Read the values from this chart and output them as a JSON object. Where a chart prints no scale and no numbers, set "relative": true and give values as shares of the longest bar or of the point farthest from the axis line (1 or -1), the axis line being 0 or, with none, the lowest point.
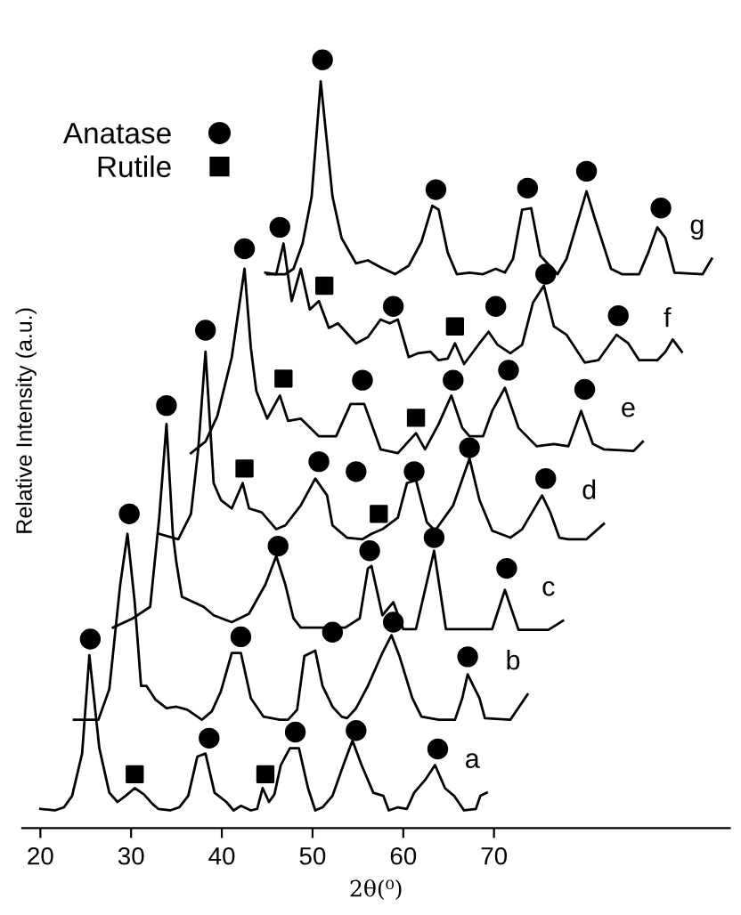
{
  "chart_data": {
    "type": "line",
    "relative": true,
    "xlabel": "2θ(⁰)",
    "ylabel": "Relative Intensity (a.u.)",
    "xlim": [
      18,
      96
    ],
    "xticks": [
      20,
      30,
      40,
      50,
      60,
      70
    ],
    "legend": "top left",
    "grid": false,
    "series": [
      {
        "name": "a",
        "color": "#000000",
        "x": [
          20,
          21.6,
          22.6,
          23.5,
          24.6,
          25.4,
          26.5,
          27.6,
          28.5,
          29.4,
          30.4,
          31.4,
          32.4,
          33.0,
          34.3,
          35.3,
          36.3,
          37.3,
          38.2,
          39.2,
          40.5,
          41.3,
          42.1,
          43.2,
          43.9,
          44.5,
          45.2,
          45.8,
          46.5,
          47.5,
          48.5,
          49.5,
          50.3,
          51.1,
          52.2,
          53.4,
          54.4,
          55.4,
          56.7,
          57.8,
          58.4,
          59.4,
          60.4,
          61.2,
          62.5,
          63.5,
          64.6,
          65.6,
          66.7,
          68.0,
          68.5,
          69.2
        ],
        "values": [
          0.025,
          0.023,
          0.027,
          0.042,
          0.097,
          0.225,
          0.104,
          0.046,
          0.034,
          0.042,
          0.052,
          0.044,
          0.031,
          0.025,
          0.023,
          0.027,
          0.042,
          0.093,
          0.097,
          0.046,
          0.034,
          0.023,
          0.029,
          0.023,
          0.025,
          0.052,
          0.034,
          0.044,
          0.082,
          0.104,
          0.104,
          0.052,
          0.023,
          0.027,
          0.042,
          0.082,
          0.114,
          0.082,
          0.046,
          0.042,
          0.023,
          0.027,
          0.025,
          0.046,
          0.064,
          0.082,
          0.052,
          0.042,
          0.023,
          0.025,
          0.042,
          0.046
        ]
      },
      {
        "name": "b",
        "color": "#000000",
        "x": [
          23.7,
          26.4,
          27.6,
          28.8,
          29.6,
          30.4,
          31.1,
          31.7,
          32.7,
          33.9,
          35.0,
          36.2,
          37.8,
          38.9,
          39.9,
          41.1,
          42.1,
          43.2,
          44.6,
          46.4,
          47.3,
          48.3,
          49.1,
          50.3,
          51.1,
          52.2,
          53.2,
          53.8,
          54.8,
          56.1,
          57.7,
          58.7,
          59.6,
          61.0,
          62.0,
          63.9,
          65.7,
          66.5,
          67.1,
          68.4,
          69.0,
          71.8,
          73.7
        ],
        "values": [
          0.141,
          0.141,
          0.181,
          0.317,
          0.383,
          0.294,
          0.185,
          0.185,
          0.167,
          0.156,
          0.158,
          0.154,
          0.141,
          0.152,
          0.178,
          0.228,
          0.228,
          0.169,
          0.145,
          0.141,
          0.141,
          0.154,
          0.224,
          0.231,
          0.185,
          0.158,
          0.145,
          0.143,
          0.156,
          0.185,
          0.228,
          0.251,
          0.223,
          0.169,
          0.145,
          0.141,
          0.141,
          0.169,
          0.2,
          0.169,
          0.143,
          0.141,
          0.174
        ]
      },
      {
        "name": "c",
        "color": "#000000",
        "x": [
          28.0,
          30.2,
          32.1,
          33.1,
          33.9,
          34.6,
          35.0,
          35.6,
          38.0,
          39.1,
          41.1,
          43.0,
          44.8,
          46.0,
          47.0,
          47.9,
          48.7,
          50.9,
          53.6,
          55.2,
          56.1,
          56.5,
          57.7,
          58.9,
          60.0,
          61.4,
          63.4,
          64.7,
          67.8,
          69.8,
          71.2,
          72.7,
          76.0,
          77.6
        ],
        "values": [
          0.261,
          0.273,
          0.288,
          0.404,
          0.526,
          0.383,
          0.345,
          0.301,
          0.288,
          0.277,
          0.268,
          0.279,
          0.317,
          0.354,
          0.317,
          0.273,
          0.261,
          0.261,
          0.261,
          0.273,
          0.338,
          0.341,
          0.277,
          0.294,
          0.259,
          0.259,
          0.361,
          0.259,
          0.259,
          0.259,
          0.31,
          0.258,
          0.258,
          0.27
        ]
      },
      {
        "name": "d",
        "color": "#000000",
        "x": [
          33.1,
          35.2,
          36.6,
          37.4,
          38.2,
          39.1,
          39.9,
          41.1,
          42.3,
          43.0,
          44.4,
          46.0,
          47.0,
          48.7,
          50.3,
          51.6,
          52.2,
          53.8,
          55.5,
          56.5,
          57.7,
          59.4,
          60.4,
          61.4,
          62.6,
          63.5,
          65.5,
          67.3,
          68.4,
          69.8,
          71.8,
          73.1,
          75.3,
          76.2,
          77.2,
          78.2,
          80.2,
          82.1
        ],
        "values": [
          0.383,
          0.376,
          0.409,
          0.493,
          0.62,
          0.449,
          0.427,
          0.416,
          0.449,
          0.416,
          0.411,
          0.389,
          0.394,
          0.42,
          0.455,
          0.433,
          0.394,
          0.378,
          0.376,
          0.383,
          0.389,
          0.404,
          0.449,
          0.453,
          0.398,
          0.387,
          0.42,
          0.481,
          0.427,
          0.387,
          0.378,
          0.389,
          0.433,
          0.411,
          0.378,
          0.376,
          0.376,
          0.396
        ]
      },
      {
        "name": "e",
        "color": "#000000",
        "x": [
          36.6,
          38.2,
          39.5,
          41.1,
          42.5,
          43.2,
          43.8,
          45.0,
          46.4,
          47.3,
          48.7,
          50.7,
          52.6,
          54.2,
          55.7,
          57.5,
          59.4,
          61.4,
          62.4,
          63.9,
          65.3,
          66.5,
          67.3,
          68.8,
          69.8,
          71.2,
          72.7,
          74.7,
          76.6,
          78.2,
          79.6,
          80.9,
          82.1,
          85.4,
          86.4
        ],
        "values": [
          0.488,
          0.503,
          0.536,
          0.613,
          0.728,
          0.625,
          0.569,
          0.533,
          0.563,
          0.53,
          0.533,
          0.51,
          0.51,
          0.552,
          0.552,
          0.493,
          0.488,
          0.514,
          0.493,
          0.526,
          0.563,
          0.521,
          0.51,
          0.51,
          0.543,
          0.573,
          0.521,
          0.497,
          0.5,
          0.497,
          0.543,
          0.5,
          0.493,
          0.491,
          0.503
        ]
      },
      {
        "name": "f",
        "color": "#000000",
        "x": [
          44.8,
          46.0,
          46.8,
          47.7,
          48.7,
          49.7,
          50.7,
          51.8,
          52.8,
          54.8,
          56.1,
          57.5,
          58.5,
          59.4,
          60.6,
          61.6,
          63.0,
          63.9,
          64.9,
          65.7,
          66.7,
          68.4,
          69.4,
          70.4,
          71.8,
          73.1,
          74.3,
          75.5,
          76.6,
          78.0,
          80.0,
          81.5,
          83.5,
          84.8,
          86.0,
          88.0,
          88.9,
          89.7,
          90.7
        ],
        "values": [
          0.723,
          0.721,
          0.761,
          0.686,
          0.728,
          0.675,
          0.686,
          0.651,
          0.657,
          0.631,
          0.639,
          0.662,
          0.657,
          0.662,
          0.613,
          0.618,
          0.62,
          0.609,
          0.611,
          0.631,
          0.604,
          0.631,
          0.646,
          0.629,
          0.618,
          0.629,
          0.684,
          0.706,
          0.653,
          0.642,
          0.606,
          0.609,
          0.642,
          0.631,
          0.609,
          0.609,
          0.62,
          0.636,
          0.62
        ]
      },
      {
        "name": "g",
        "color": "#000000",
        "x": [
          45.0,
          47.0,
          47.9,
          48.9,
          49.9,
          50.9,
          52.2,
          53.2,
          54.8,
          56.1,
          57.5,
          59.1,
          60.6,
          62.0,
          63.2,
          63.9,
          64.9,
          65.9,
          67.3,
          68.8,
          70.2,
          71.2,
          72.1,
          73.1,
          74.1,
          75.1,
          77.0,
          78.0,
          80.2,
          81.1,
          82.9,
          84.1,
          86.0,
          87.0,
          88.0,
          88.9,
          89.9,
          93.0,
          94.0
        ],
        "values": [
          0.721,
          0.721,
          0.728,
          0.761,
          0.822,
          0.972,
          0.822,
          0.768,
          0.735,
          0.739,
          0.73,
          0.721,
          0.732,
          0.763,
          0.81,
          0.805,
          0.749,
          0.721,
          0.723,
          0.721,
          0.728,
          0.723,
          0.741,
          0.805,
          0.807,
          0.745,
          0.721,
          0.741,
          0.829,
          0.794,
          0.728,
          0.721,
          0.721,
          0.749,
          0.782,
          0.768,
          0.723,
          0.721,
          0.741
        ]
      },
      {
        "type": "scatter",
        "name": "Anatase",
        "color": "#000000",
        "marker": "circle",
        "x": [
          25.5,
          38.6,
          48.1,
          54.8,
          63.8,
          29.8,
          42.1,
          52.2,
          58.9,
          67.1,
          33.9,
          46.2,
          56.3,
          63.4,
          71.4,
          38.2,
          50.7,
          54.8,
          61.2,
          67.3,
          75.7,
          42.5,
          55.5,
          65.5,
          71.6,
          80.0,
          46.4,
          58.9,
          70.2,
          75.7,
          83.7,
          51.1,
          63.6,
          73.7,
          80.2,
          88.4
        ],
        "values": [
          0.246,
          0.117,
          0.125,
          0.127,
          0.103,
          0.409,
          0.249,
          0.255,
          0.268,
          0.223,
          0.55,
          0.367,
          0.361,
          0.378,
          0.338,
          0.648,
          0.477,
          0.464,
          0.464,
          0.495,
          0.455,
          0.754,
          0.583,
          0.583,
          0.596,
          0.571,
          0.782,
          0.679,
          0.679,
          0.721,
          0.667,
          1.0,
          0.831,
          0.833,
          0.855,
          0.807
        ]
      },
      {
        "type": "scatter",
        "name": "Rutile",
        "color": "#000000",
        "marker": "square",
        "x": [
          30.4,
          44.8,
          42.5,
          57.3,
          46.8,
          61.4,
          51.3,
          65.7
        ],
        "values": [
          0.07,
          0.07,
          0.468,
          0.409,
          0.585,
          0.534,
          0.706,
          0.653
        ]
      }
    ]
  }
}
